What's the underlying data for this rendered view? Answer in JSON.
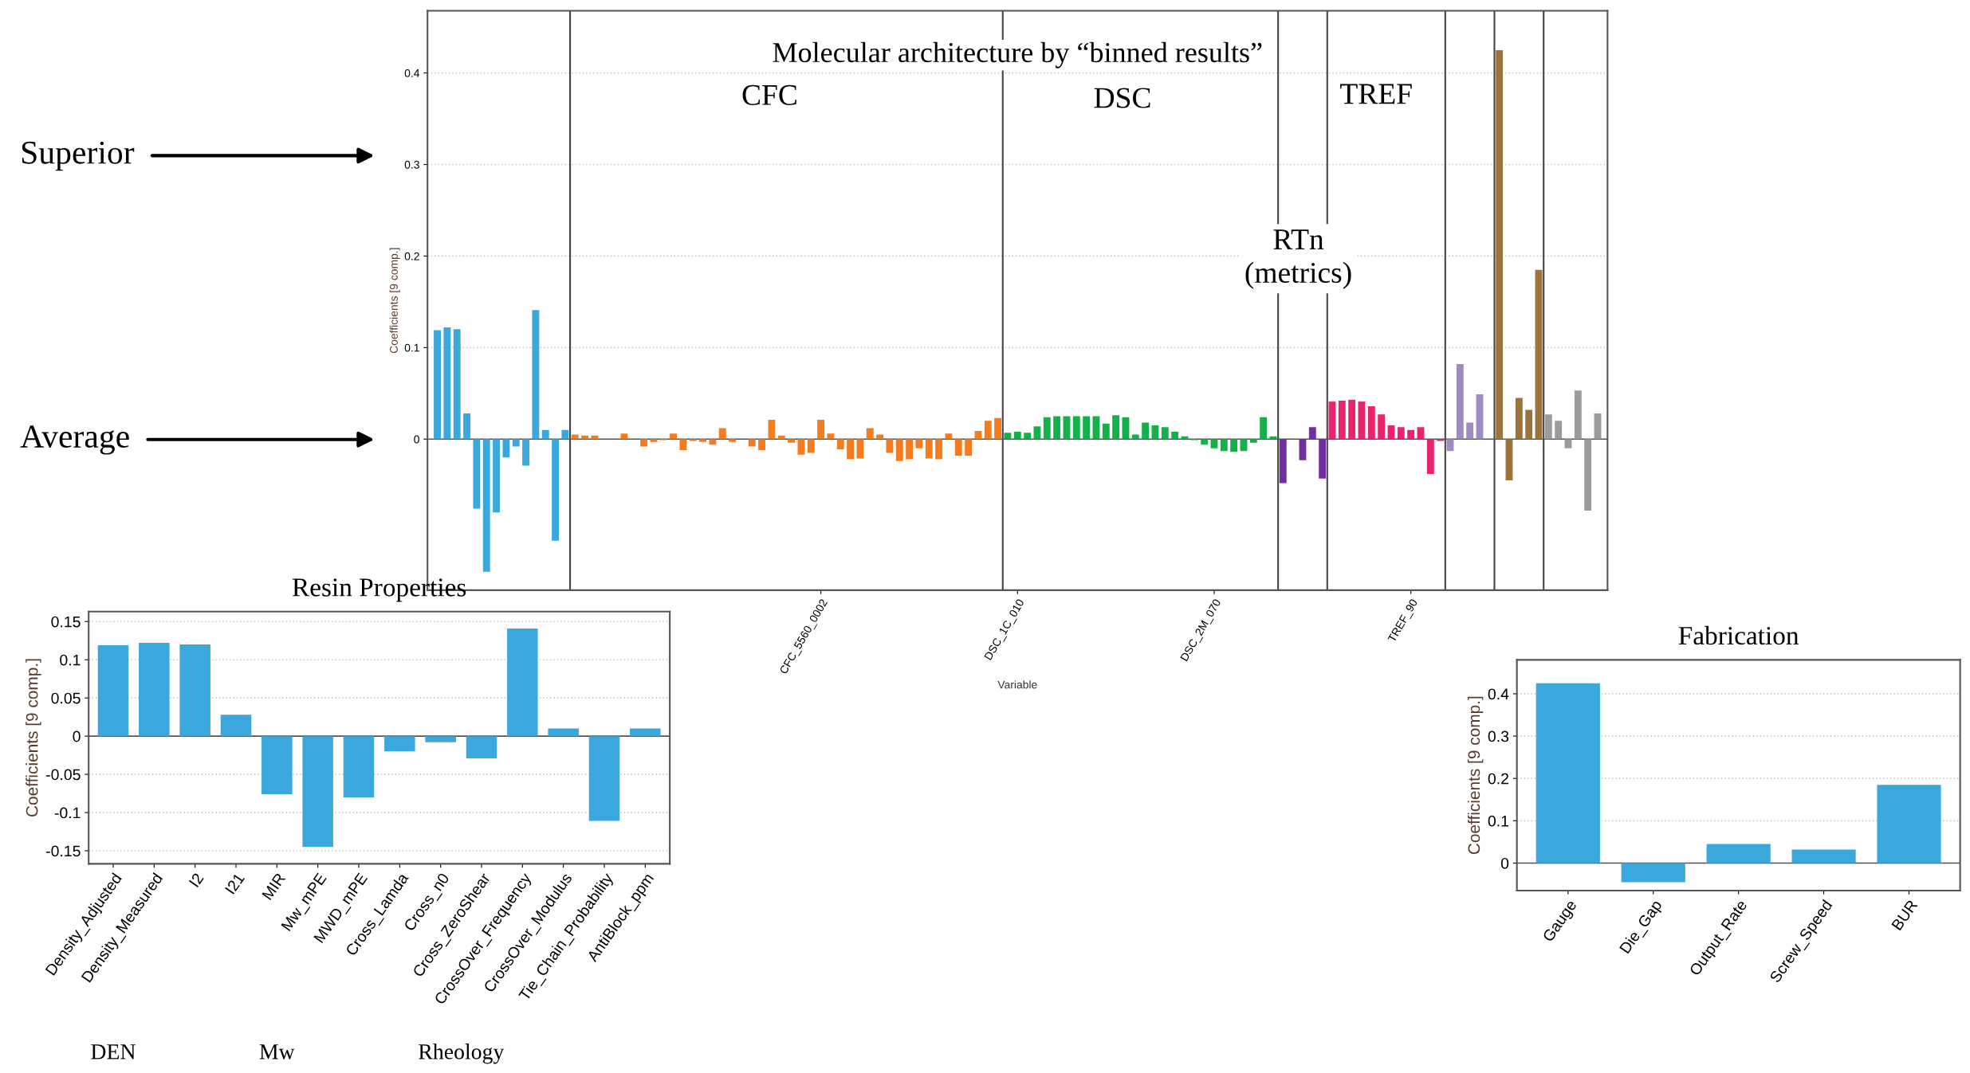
{
  "chart_data": [
    {
      "type": "bar",
      "title": "Molecular architecture by “binned results”",
      "xlabel": "Variable",
      "ylabel": "Coefficients [9 comp.]",
      "categories": [
        null,
        null,
        null,
        null,
        null,
        null,
        null,
        null,
        null,
        null,
        null,
        null,
        null,
        null,
        null,
        null,
        null,
        null,
        null,
        null,
        null,
        null,
        null,
        null,
        null,
        null,
        null,
        null,
        null,
        null,
        null,
        null,
        null,
        null,
        null,
        null,
        null,
        null,
        null,
        "CFC_5560_0002",
        null,
        null,
        null,
        null,
        null,
        null,
        null,
        null,
        null,
        null,
        null,
        null,
        null,
        null,
        null,
        null,
        null,
        null,
        null,
        "DSC_1C_010",
        null,
        null,
        null,
        null,
        null,
        null,
        null,
        null,
        null,
        null,
        null,
        null,
        null,
        null,
        null,
        null,
        null,
        null,
        null,
        "DSC_2M_070",
        null,
        null,
        null,
        null,
        null,
        null,
        null,
        null,
        null,
        null,
        null,
        null,
        null,
        null,
        null,
        null,
        null,
        null,
        null,
        "TREF_90",
        null,
        null,
        null,
        null,
        null,
        null,
        null,
        null,
        null,
        null,
        null,
        null,
        null,
        null,
        null,
        null,
        null,
        null,
        null
      ],
      "values": [
        0.119,
        0.122,
        0.12,
        0.028,
        -0.076,
        -0.145,
        -0.08,
        -0.02,
        -0.008,
        -0.029,
        0.141,
        0.01,
        -0.111,
        0.01,
        0.005,
        0.004,
        0.004,
        null,
        null,
        0.006,
        null,
        -0.008,
        -0.003,
        -0.001,
        0.006,
        -0.012,
        -0.002,
        -0.003,
        -0.006,
        0.012,
        -0.003,
        null,
        -0.008,
        -0.012,
        0.021,
        0.004,
        -0.004,
        -0.017,
        -0.015,
        0.021,
        0.006,
        -0.011,
        -0.022,
        -0.021,
        0.012,
        0.005,
        -0.015,
        -0.024,
        -0.022,
        -0.01,
        -0.021,
        -0.022,
        0.006,
        -0.018,
        -0.018,
        0.009,
        0.02,
        0.023,
        0.007,
        0.008,
        0.007,
        0.014,
        0.024,
        0.025,
        0.025,
        0.025,
        0.025,
        0.025,
        0.017,
        0.026,
        0.024,
        0.005,
        0.018,
        0.015,
        0.013,
        0.008,
        0.003,
        -0.001,
        -0.006,
        -0.01,
        -0.013,
        -0.014,
        -0.013,
        -0.004,
        0.024,
        0.003,
        -0.048,
        null,
        -0.023,
        0.013,
        -0.043,
        0.041,
        0.042,
        0.043,
        0.041,
        0.036,
        0.027,
        0.015,
        0.013,
        0.01,
        0.013,
        -0.038,
        -0.002,
        -0.013,
        0.082,
        0.018,
        0.049,
        null,
        0.425,
        -0.045,
        0.045,
        0.032,
        0.185,
        0.027,
        0.02,
        -0.01,
        0.053,
        -0.078,
        0.028
      ],
      "colors": [
        "#3aa8dc",
        "#3aa8dc",
        "#3aa8dc",
        "#3aa8dc",
        "#3aa8dc",
        "#3aa8dc",
        "#3aa8dc",
        "#3aa8dc",
        "#3aa8dc",
        "#3aa8dc",
        "#3aa8dc",
        "#3aa8dc",
        "#3aa8dc",
        "#3aa8dc",
        "#f47b20",
        "#f47b20",
        "#f47b20",
        "#f47b20",
        "#f47b20",
        "#f47b20",
        "#f47b20",
        "#f47b20",
        "#f47b20",
        "#f47b20",
        "#f47b20",
        "#f47b20",
        "#f47b20",
        "#f47b20",
        "#f47b20",
        "#f47b20",
        "#f47b20",
        "#f47b20",
        "#f47b20",
        "#f47b20",
        "#f47b20",
        "#f47b20",
        "#f47b20",
        "#f47b20",
        "#f47b20",
        "#f47b20",
        "#f47b20",
        "#f47b20",
        "#f47b20",
        "#f47b20",
        "#f47b20",
        "#f47b20",
        "#f47b20",
        "#f47b20",
        "#f47b20",
        "#f47b20",
        "#f47b20",
        "#f47b20",
        "#f47b20",
        "#f47b20",
        "#f47b20",
        "#f47b20",
        "#f47b20",
        "#f47b20",
        "#14b04a",
        "#14b04a",
        "#14b04a",
        "#14b04a",
        "#14b04a",
        "#14b04a",
        "#14b04a",
        "#14b04a",
        "#14b04a",
        "#14b04a",
        "#14b04a",
        "#14b04a",
        "#14b04a",
        "#14b04a",
        "#14b04a",
        "#14b04a",
        "#14b04a",
        "#14b04a",
        "#14b04a",
        "#14b04a",
        "#14b04a",
        "#14b04a",
        "#14b04a",
        "#14b04a",
        "#14b04a",
        "#14b04a",
        "#14b04a",
        "#14b04a",
        "#7030a0",
        "#7030a0",
        "#7030a0",
        "#7030a0",
        "#7030a0",
        "#e9246e",
        "#e9246e",
        "#e9246e",
        "#e9246e",
        "#e9246e",
        "#e9246e",
        "#e9246e",
        "#e9246e",
        "#e9246e",
        "#e9246e",
        "#e9246e",
        "#e9246e",
        "#a08bc0",
        "#a08bc0",
        "#a08bc0",
        "#a08bc0",
        "#a08bc0",
        "#9b733b",
        "#9b733b",
        "#9b733b",
        "#9b733b",
        "#9b733b",
        "#9b9b9b",
        "#9b9b9b",
        "#9b9b9b",
        "#9b9b9b",
        "#9b9b9b",
        "#9b9b9b"
      ],
      "ylim": [
        -0.165,
        0.468
      ],
      "yticks": [
        0,
        0.1,
        0.2,
        0.3,
        0.4
      ],
      "grid": "y",
      "annotations": [
        "CFC",
        "DSC",
        "TREF",
        "RTn\n(metrics)",
        "Superior",
        "Average"
      ]
    },
    {
      "type": "bar",
      "title": "Resin Properties",
      "ylabel": "Coefficients [9 comp.]",
      "categories": [
        "Density_Adjusted",
        "Density_Measured",
        "I2",
        "I21",
        "MIR",
        "Mw_mPE",
        "MWD_mPE",
        "Cross_Lamda",
        "Cross_n0",
        "Cross_ZeroShear",
        "CrossOver_Frequency",
        "CrossOver_Modulus",
        "Tie_Chain_Probability",
        "AntiBlock_ppm"
      ],
      "values": [
        0.119,
        0.122,
        0.12,
        0.028,
        -0.076,
        -0.145,
        -0.08,
        -0.02,
        -0.008,
        -0.029,
        0.141,
        0.01,
        -0.111,
        0.01
      ],
      "color": "#3aa8dc",
      "ylim": [
        -0.167,
        0.163
      ],
      "yticks": [
        0.15,
        0.1,
        0.05,
        0,
        -0.05,
        -0.1,
        -0.15
      ],
      "grid": "y",
      "annotations": [
        "DEN",
        "Mw",
        "Rheology"
      ]
    },
    {
      "type": "bar",
      "title": "Fabrication",
      "ylabel": "Coefficients [9 comp.]",
      "categories": [
        "Gauge",
        "Die_Gap",
        "Output_Rate",
        "Screw_Speed",
        "BUR"
      ],
      "values": [
        0.425,
        -0.045,
        0.045,
        0.032,
        0.185
      ],
      "color": "#3aa8dc",
      "ylim": [
        -0.065,
        0.48
      ],
      "yticks": [
        0,
        0.1,
        0.2,
        0.3,
        0.4
      ],
      "grid": "y"
    }
  ]
}
